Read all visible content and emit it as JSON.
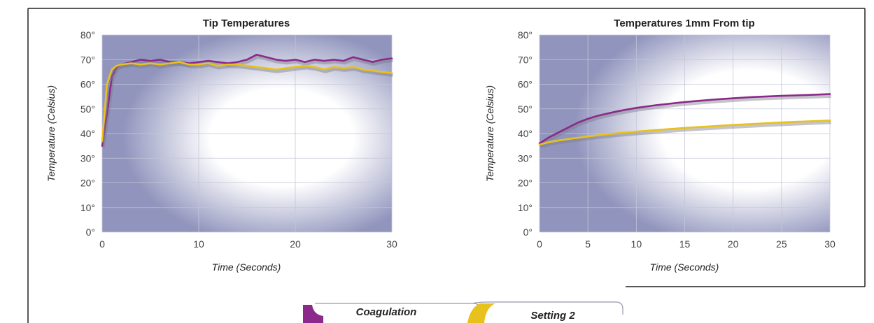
{
  "colors": {
    "coagulation": "#8b2a8a",
    "setting2": "#e8c21c",
    "plot_bg": "#9195bd",
    "grid": "#c4c6d8",
    "frame": "#222222"
  },
  "legend": {
    "items": [
      {
        "label": "Coagulation",
        "color": "#8b2a8a"
      },
      {
        "label": "Setting 2",
        "color": "#e8c21c"
      }
    ]
  },
  "chart_data": [
    {
      "type": "line",
      "title": "Tip Temperatures",
      "xlabel": "Time (Seconds)",
      "ylabel": "Temperature (Celsius)",
      "xlim": [
        0,
        30
      ],
      "ylim": [
        0,
        80
      ],
      "x_ticks": [
        {
          "value": 0,
          "label": "0"
        },
        {
          "value": 10,
          "label": "10"
        },
        {
          "value": 20,
          "label": "20"
        },
        {
          "value": 30,
          "label": "30"
        }
      ],
      "y_ticks": [
        {
          "value": 0,
          "label": "0°"
        },
        {
          "value": 10,
          "label": "10°"
        },
        {
          "value": 20,
          "label": "20°"
        },
        {
          "value": 30,
          "label": "30°"
        },
        {
          "value": 40,
          "label": "40°"
        },
        {
          "value": 50,
          "label": "50°"
        },
        {
          "value": 60,
          "label": "60°"
        },
        {
          "value": 70,
          "label": "70°"
        },
        {
          "value": 80,
          "label": "80°"
        }
      ],
      "grid": true,
      "series": [
        {
          "name": "Coagulation",
          "color": "#8b2a8a",
          "x": [
            0,
            0.5,
            1,
            1.5,
            2,
            3,
            4,
            5,
            6,
            7,
            8,
            9,
            10,
            11,
            12,
            13,
            14,
            15,
            16,
            17,
            18,
            19,
            20,
            21,
            22,
            23,
            24,
            25,
            26,
            27,
            28,
            29,
            30
          ],
          "y": [
            35,
            48,
            63,
            67,
            68,
            69,
            70,
            69.5,
            70,
            69,
            69,
            68.5,
            69,
            69.5,
            69,
            68.5,
            69,
            70,
            72,
            71,
            70,
            69.5,
            70,
            69,
            70,
            69.5,
            70,
            69.5,
            71,
            70,
            69,
            70,
            70.5
          ]
        },
        {
          "name": "Setting 2",
          "color": "#e8c21c",
          "x": [
            0,
            0.5,
            1,
            1.5,
            2,
            3,
            4,
            5,
            6,
            7,
            8,
            9,
            10,
            11,
            12,
            13,
            14,
            15,
            16,
            17,
            18,
            19,
            20,
            21,
            22,
            23,
            24,
            25,
            26,
            27,
            28,
            29,
            30
          ],
          "y": [
            37,
            60,
            66,
            67.5,
            68,
            68.5,
            68,
            68.5,
            68,
            68.5,
            69,
            68,
            68,
            68.5,
            67.5,
            68,
            68,
            67.5,
            67,
            66.5,
            66,
            66.5,
            67,
            67.5,
            67,
            66,
            67,
            66.5,
            67,
            66,
            65.5,
            65,
            64.5
          ]
        }
      ]
    },
    {
      "type": "line",
      "title": "Temperatures 1mm From tip",
      "xlabel": "Time (Seconds)",
      "ylabel": "Temperature (Celsius)",
      "xlim": [
        0,
        30
      ],
      "ylim": [
        0,
        80
      ],
      "x_ticks": [
        {
          "value": 0,
          "label": "0"
        },
        {
          "value": 5,
          "label": "5"
        },
        {
          "value": 10,
          "label": "10"
        },
        {
          "value": 15,
          "label": "15"
        },
        {
          "value": 20,
          "label": "20"
        },
        {
          "value": 25,
          "label": "25"
        },
        {
          "value": 30,
          "label": "30"
        }
      ],
      "y_ticks": [
        {
          "value": 0,
          "label": "0°"
        },
        {
          "value": 10,
          "label": "10°"
        },
        {
          "value": 20,
          "label": "20°"
        },
        {
          "value": 30,
          "label": "30°"
        },
        {
          "value": 40,
          "label": "40°"
        },
        {
          "value": 50,
          "label": "50°"
        },
        {
          "value": 60,
          "label": "60°"
        },
        {
          "value": 70,
          "label": "70°"
        },
        {
          "value": 80,
          "label": "80°"
        }
      ],
      "grid": true,
      "series": [
        {
          "name": "Coagulation",
          "color": "#8b2a8a",
          "x": [
            0,
            1,
            2,
            3,
            4,
            5,
            6,
            8,
            10,
            12,
            15,
            18,
            20,
            22,
            25,
            28,
            30
          ],
          "y": [
            36,
            38.5,
            40.5,
            42.5,
            44.5,
            46,
            47.2,
            49,
            50.4,
            51.5,
            52.8,
            53.8,
            54.3,
            54.8,
            55.3,
            55.7,
            56
          ]
        },
        {
          "name": "Setting 2",
          "color": "#e8c21c",
          "x": [
            0,
            1,
            2,
            3,
            4,
            5,
            6,
            8,
            10,
            12,
            15,
            18,
            20,
            22,
            25,
            28,
            30
          ],
          "y": [
            35.5,
            36.5,
            37.2,
            37.8,
            38.3,
            38.8,
            39.3,
            40.1,
            40.8,
            41.4,
            42.3,
            43,
            43.5,
            43.9,
            44.5,
            45,
            45.3
          ]
        }
      ]
    }
  ]
}
